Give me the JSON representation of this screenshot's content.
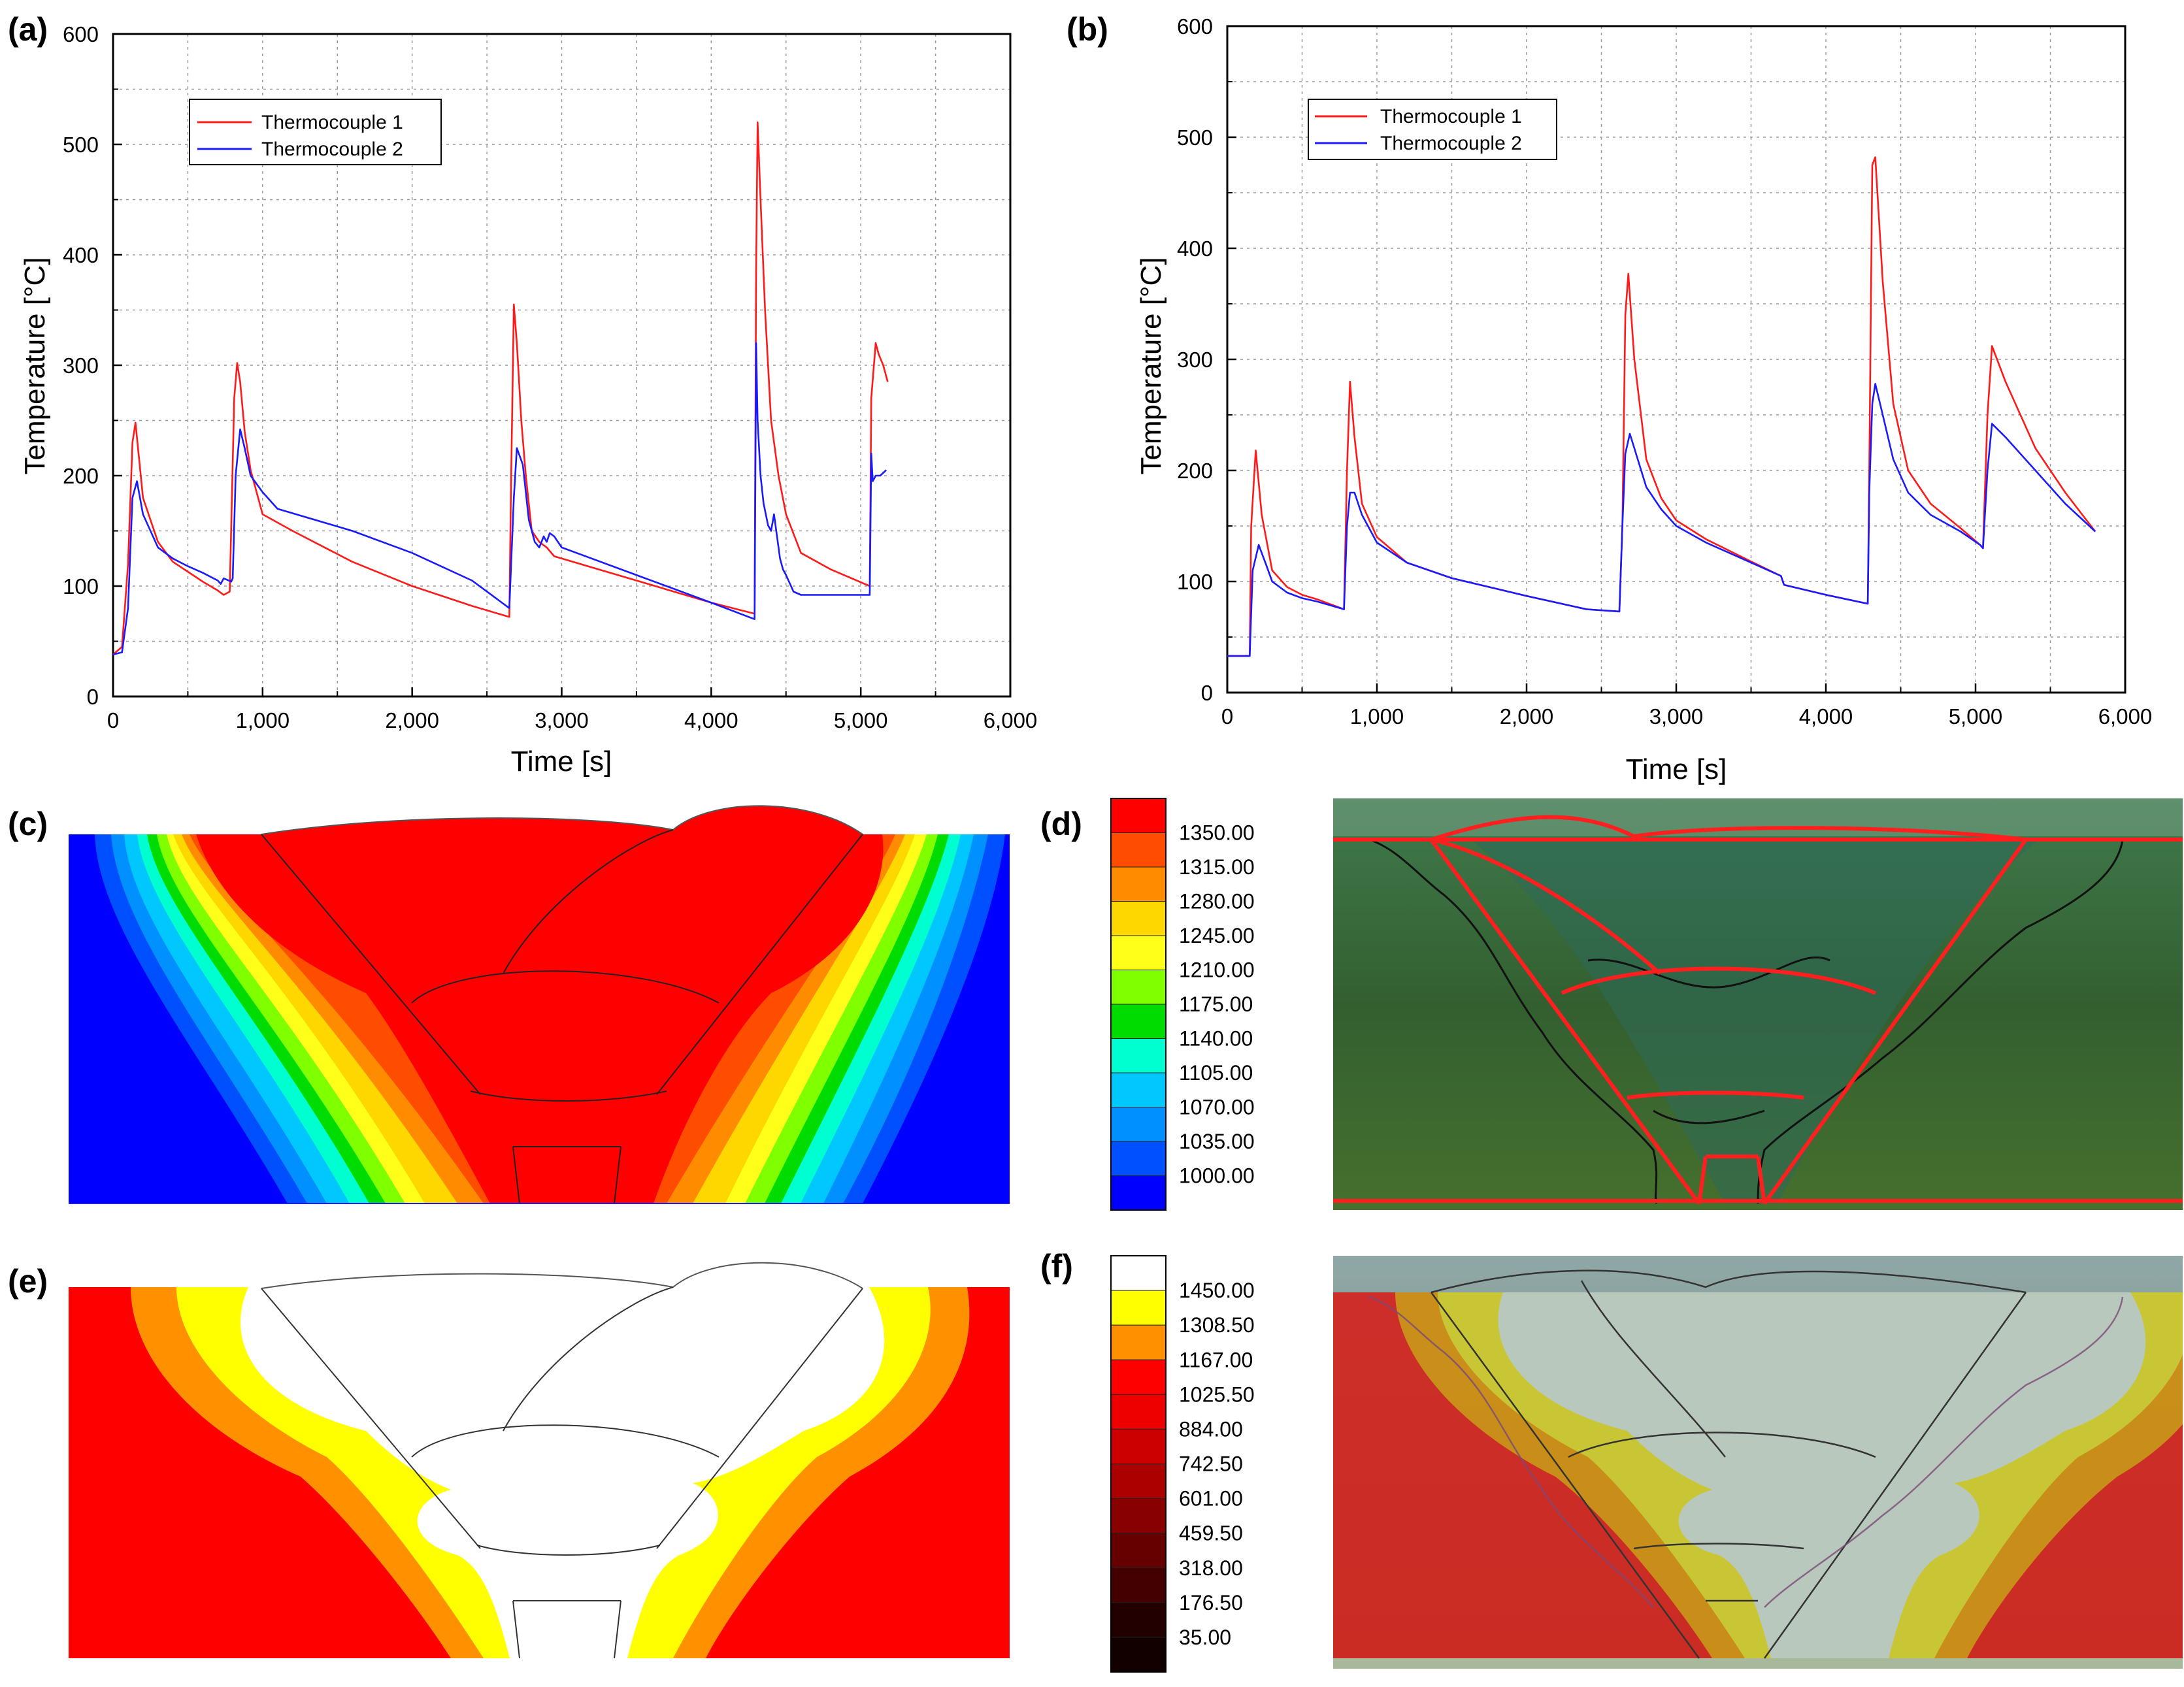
{
  "panel_labels": [
    "(a)",
    "(b)",
    "(c)",
    "(d)",
    "(e)",
    "(f)"
  ],
  "colors": {
    "tc1": "#ff1a1a",
    "tc2": "#1a1aff",
    "c_bands": [
      "#ff0000",
      "#ff4d00",
      "#ff8c00",
      "#ffd700",
      "#ffff1a",
      "#80ff00",
      "#00dc00",
      "#00ffd0",
      "#00c8ff",
      "#0090ff",
      "#0050ff",
      "#0000ff"
    ],
    "f_bands": [
      "#ffffff",
      "#ffff00",
      "#ff9000",
      "#ff0000",
      "#ee0000",
      "#cc0000",
      "#aa0000",
      "#880000",
      "#660000",
      "#440000",
      "#220000",
      "#120000"
    ]
  },
  "chart_data": [
    {
      "id": "a",
      "type": "line",
      "title": "",
      "xlabel": "Time [s]",
      "ylabel": "Temperature [°C]",
      "xlim": [
        0,
        6000
      ],
      "ylim": [
        0,
        600
      ],
      "xticks": [
        "0",
        "1,000",
        "2,000",
        "3,000",
        "4,000",
        "5,000",
        "6,000"
      ],
      "yticks": [
        "0",
        "100",
        "200",
        "300",
        "400",
        "500",
        "600"
      ],
      "grid": true,
      "legend": "top-left",
      "series": [
        {
          "name": "Thermocouple 1",
          "color": "#ff1a1a",
          "x": [
            0,
            60,
            100,
            130,
            150,
            200,
            300,
            400,
            500,
            600,
            700,
            740,
            780,
            810,
            830,
            850,
            880,
            920,
            1000,
            1200,
            1600,
            2000,
            2400,
            2650,
            2660,
            2680,
            2700,
            2730,
            2760,
            2800,
            2850,
            2900,
            2950,
            3000,
            3500,
            4000,
            4290,
            4300,
            4310,
            4330,
            4360,
            4400,
            4450,
            4500,
            4600,
            4800,
            5060,
            5070,
            5100,
            5120,
            5150,
            5180
          ],
          "y": [
            38,
            45,
            120,
            230,
            248,
            180,
            140,
            122,
            113,
            104,
            96,
            92,
            95,
            270,
            302,
            285,
            240,
            205,
            165,
            150,
            122,
            100,
            82,
            72,
            180,
            355,
            320,
            250,
            200,
            150,
            140,
            135,
            127,
            125,
            105,
            85,
            75,
            385,
            520,
            450,
            350,
            250,
            200,
            165,
            130,
            115,
            100,
            270,
            320,
            310,
            300,
            285
          ]
        },
        {
          "name": "Thermocouple 2",
          "color": "#1a1aff",
          "x": [
            0,
            60,
            100,
            130,
            160,
            200,
            300,
            400,
            500,
            600,
            700,
            720,
            740,
            790,
            800,
            820,
            850,
            880,
            920,
            1000,
            1100,
            1600,
            2000,
            2400,
            2650,
            2680,
            2700,
            2740,
            2780,
            2820,
            2850,
            2880,
            2900,
            2920,
            2950,
            3000,
            3500,
            4000,
            4290,
            4300,
            4310,
            4330,
            4350,
            4380,
            4400,
            4420,
            4440,
            4460,
            4480,
            4500,
            4550,
            4600,
            4800,
            5060,
            5070,
            5080,
            5100,
            5130,
            5170
          ],
          "y": [
            38,
            40,
            80,
            180,
            195,
            165,
            135,
            125,
            118,
            112,
            105,
            102,
            107,
            104,
            107,
            200,
            242,
            225,
            200,
            185,
            170,
            150,
            130,
            105,
            80,
            180,
            225,
            210,
            160,
            140,
            135,
            145,
            140,
            148,
            145,
            135,
            110,
            85,
            70,
            320,
            250,
            200,
            175,
            155,
            150,
            165,
            145,
            125,
            115,
            110,
            95,
            92,
            92,
            92,
            220,
            195,
            200,
            200,
            205
          ]
        }
      ]
    },
    {
      "id": "b",
      "type": "line",
      "title": "",
      "xlabel": "Time [s]",
      "ylabel": "Temperature [°C]",
      "xlim": [
        0,
        6000
      ],
      "ylim": [
        0,
        600
      ],
      "xticks": [
        "0",
        "1,000",
        "2,000",
        "3,000",
        "4,000",
        "5,000",
        "6,000"
      ],
      "yticks": [
        "0",
        "100",
        "200",
        "300",
        "400",
        "500",
        "600"
      ],
      "grid": true,
      "legend": "top-left",
      "series": [
        {
          "name": "Thermocouple 1",
          "color": "#ff1a1a",
          "x": [
            0,
            150,
            160,
            190,
            230,
            300,
            400,
            500,
            600,
            780,
            800,
            820,
            850,
            900,
            1000,
            1200,
            1500,
            2000,
            2400,
            2620,
            2640,
            2660,
            2680,
            2720,
            2800,
            2900,
            3000,
            3200,
            3500,
            3700,
            3720,
            4000,
            4280,
            4290,
            4310,
            4330,
            4380,
            4450,
            4550,
            4700,
            4900,
            5030,
            5050,
            5080,
            5110,
            5200,
            5400,
            5600,
            5800
          ],
          "y": [
            33,
            33,
            150,
            218,
            160,
            110,
            95,
            88,
            84,
            75,
            200,
            280,
            230,
            170,
            140,
            117,
            103,
            87,
            75,
            73,
            150,
            340,
            377,
            300,
            210,
            175,
            155,
            138,
            118,
            105,
            97,
            88,
            80,
            200,
            475,
            482,
            370,
            260,
            200,
            170,
            148,
            133,
            130,
            250,
            312,
            280,
            220,
            180,
            145
          ]
        },
        {
          "name": "Thermocouple 2",
          "color": "#1a1aff",
          "x": [
            0,
            150,
            170,
            210,
            260,
            300,
            400,
            500,
            600,
            780,
            800,
            820,
            850,
            900,
            1000,
            1200,
            1500,
            2000,
            2400,
            2620,
            2640,
            2660,
            2690,
            2720,
            2800,
            2900,
            3000,
            3200,
            3500,
            3700,
            3720,
            4000,
            4280,
            4290,
            4310,
            4330,
            4380,
            4450,
            4550,
            4700,
            4900,
            5030,
            5050,
            5080,
            5110,
            5200,
            5400,
            5600,
            5800
          ],
          "y": [
            33,
            33,
            110,
            133,
            115,
            100,
            90,
            85,
            82,
            75,
            150,
            180,
            180,
            160,
            135,
            117,
            103,
            87,
            75,
            73,
            150,
            215,
            233,
            220,
            185,
            165,
            150,
            135,
            117,
            105,
            97,
            88,
            80,
            180,
            260,
            278,
            250,
            210,
            180,
            160,
            145,
            133,
            130,
            200,
            242,
            230,
            200,
            170,
            145
          ]
        }
      ]
    }
  ],
  "colorbar_d": {
    "labels": [
      "1350.00",
      "1315.00",
      "1280.00",
      "1245.00",
      "1210.00",
      "1175.00",
      "1140.00",
      "1105.00",
      "1070.00",
      "1035.00",
      "1000.00"
    ]
  },
  "colorbar_f": {
    "labels": [
      "1450.00",
      "1308.50",
      "1167.00",
      "1025.50",
      "884.00",
      "742.50",
      "601.00",
      "459.50",
      "318.00",
      "176.50",
      "35.00"
    ]
  }
}
